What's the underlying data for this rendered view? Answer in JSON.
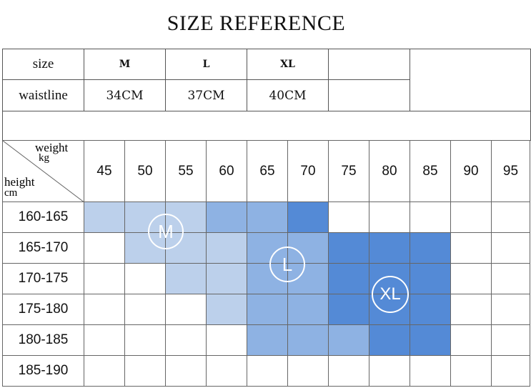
{
  "title": "SIZE REFERENCE",
  "waist_table": {
    "size_label": "size",
    "waist_label": "waistline",
    "sizes": [
      "M",
      "L",
      "XL"
    ],
    "waists": [
      "34CM",
      "37CM",
      "40CM"
    ]
  },
  "grid": {
    "corner": {
      "weight": "weight",
      "kg": "kg",
      "height": "height",
      "cm": "cm"
    },
    "weights": [
      "45",
      "50",
      "55",
      "60",
      "65",
      "70",
      "75",
      "80",
      "85",
      "90",
      "95"
    ],
    "heights": [
      "160-165",
      "165-170",
      "170-175",
      "175-180",
      "180-185",
      "185-190"
    ],
    "fill_levels": [
      [
        1,
        1,
        1,
        2,
        2,
        3,
        0,
        0,
        0,
        0,
        0
      ],
      [
        0,
        1,
        1,
        1,
        2,
        2,
        3,
        3,
        3,
        0,
        0
      ],
      [
        0,
        0,
        1,
        1,
        2,
        2,
        3,
        3,
        3,
        0,
        0
      ],
      [
        0,
        0,
        0,
        1,
        2,
        2,
        3,
        3,
        3,
        0,
        0
      ],
      [
        0,
        0,
        0,
        0,
        2,
        2,
        2,
        3,
        3,
        0,
        0
      ],
      [
        0,
        0,
        0,
        0,
        0,
        0,
        0,
        0,
        0,
        0,
        0
      ]
    ],
    "colors": [
      "#ffffff",
      "#bcd0eb",
      "#8eb2e3",
      "#548ad6"
    ],
    "badges": [
      "M",
      "L",
      "XL"
    ]
  }
}
